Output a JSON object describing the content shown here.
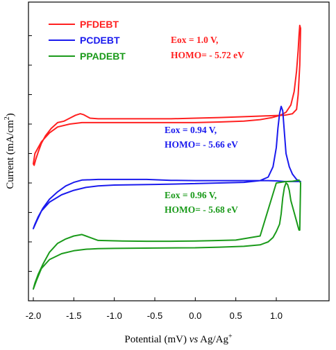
{
  "chart_data": {
    "type": "line",
    "xlabel": "Potential (mV) vs Ag/Ag⁺",
    "xlabel_parts": {
      "pre": "Potential (mV) ",
      "vs": "vs",
      "post": " Ag/Ag",
      "sup": "+"
    },
    "ylabel": "Current (mA/cm²)",
    "ylabel_parts": {
      "pre": "Current (mA/cm",
      "sup": "2",
      "post": ")"
    },
    "xlim": [
      -2.0,
      1.3
    ],
    "ylim": [
      0,
      10
    ],
    "x_ticks": [
      -2.0,
      -1.5,
      -1.0,
      -0.5,
      0.0,
      0.5,
      1.0
    ],
    "x_tick_labels": [
      "-2.0",
      "-1.5",
      "-1.0",
      "-0.5",
      "0.0",
      "0.5",
      "1.0"
    ],
    "y_ticks": [
      0,
      1,
      2,
      3,
      4,
      5,
      6,
      7,
      8,
      9
    ],
    "y_tick_labels_shown": false,
    "grid": false,
    "legend_position": "top-left",
    "series": [
      {
        "name": "PFDEBT",
        "color": "#ff2020",
        "annotation": [
          "Eox = 1.0 V,",
          "HOMO= - 5.72 eV"
        ],
        "x": [
          0.0,
          0.3,
          0.6,
          0.8,
          0.95,
          1.05,
          1.12,
          1.18,
          1.22,
          1.25,
          1.27,
          1.28,
          1.29,
          1.3,
          1.29,
          1.27,
          1.25,
          1.2,
          1.1,
          0.9,
          0.6,
          0.3,
          0.0,
          -0.3,
          -0.6,
          -0.9,
          -1.2,
          -1.3,
          -1.38,
          -1.42,
          -1.48,
          -1.55,
          -1.62,
          -1.7,
          -1.78,
          -1.85,
          -1.9,
          -1.94,
          -1.97,
          -1.99,
          -2.0,
          -1.98,
          -1.9,
          -1.8,
          -1.7,
          -1.55,
          -1.4,
          -1.2,
          -1.0,
          -0.5,
          0.0
        ],
        "y": [
          6.05,
          6.07,
          6.1,
          6.15,
          6.22,
          6.3,
          6.4,
          6.65,
          7.1,
          7.8,
          8.5,
          9.0,
          9.35,
          9.25,
          8.0,
          7.0,
          6.5,
          6.35,
          6.3,
          6.28,
          6.25,
          6.22,
          6.2,
          6.18,
          6.18,
          6.18,
          6.18,
          6.2,
          6.32,
          6.35,
          6.3,
          6.2,
          6.1,
          6.05,
          5.85,
          5.6,
          5.35,
          5.05,
          4.8,
          4.6,
          4.65,
          5.0,
          5.4,
          5.7,
          5.9,
          6.0,
          6.05,
          6.05,
          6.05,
          6.05,
          6.05
        ]
      },
      {
        "name": "PCDEBT",
        "color": "#1a1aee",
        "annotation": [
          "Eox = 0.94 V,",
          "HOMO= - 5.66 eV"
        ],
        "x": [
          0.0,
          0.3,
          0.6,
          0.8,
          0.9,
          0.96,
          1.0,
          1.02,
          1.04,
          1.06,
          1.08,
          1.1,
          1.12,
          1.16,
          1.2,
          1.25,
          1.28,
          1.3,
          1.25,
          1.2,
          1.1,
          1.0,
          0.9,
          0.7,
          0.5,
          0.3,
          0.1,
          0.0,
          -0.3,
          -0.6,
          -0.9,
          -1.2,
          -1.4,
          -1.5,
          -1.6,
          -1.7,
          -1.8,
          -1.88,
          -1.94,
          -1.98,
          -2.0,
          -1.96,
          -1.9,
          -1.8,
          -1.65,
          -1.5,
          -1.35,
          -1.2,
          -1.0,
          -0.5,
          0.0
        ],
        "y": [
          3.98,
          4.0,
          4.02,
          4.08,
          4.2,
          4.55,
          5.2,
          5.85,
          6.35,
          6.6,
          6.45,
          5.7,
          5.0,
          4.55,
          4.3,
          4.12,
          4.07,
          4.05,
          4.05,
          4.05,
          4.05,
          4.07,
          4.08,
          4.08,
          4.08,
          4.08,
          4.08,
          4.08,
          4.09,
          4.12,
          4.12,
          4.12,
          4.1,
          4.02,
          3.9,
          3.7,
          3.45,
          3.15,
          2.85,
          2.6,
          2.45,
          2.7,
          3.05,
          3.35,
          3.6,
          3.75,
          3.85,
          3.9,
          3.93,
          3.95,
          3.98
        ]
      },
      {
        "name": "PPADEBT",
        "color": "#1a9a1a",
        "annotation": [
          "Eox = 0.96 V,",
          "HOMO= - 5.68 eV"
        ],
        "x": [
          0.0,
          0.3,
          0.6,
          0.8,
          0.9,
          0.96,
          1.0,
          1.04,
          1.06,
          1.08,
          1.1,
          1.12,
          1.14,
          1.16,
          1.18,
          1.22,
          1.25,
          1.27,
          1.28,
          1.29,
          1.3,
          1.28,
          1.25,
          1.2,
          1.15,
          1.1,
          1.0,
          0.8,
          0.5,
          0.2,
          0.0,
          -0.3,
          -0.6,
          -0.9,
          -1.2,
          -1.35,
          -1.4,
          -1.5,
          -1.6,
          -1.7,
          -1.8,
          -1.88,
          -1.94,
          -1.98,
          -2.0,
          -1.96,
          -1.9,
          -1.8,
          -1.65,
          -1.5,
          -1.35,
          -1.2,
          -1.0,
          -0.5,
          0.0
        ],
        "y": [
          1.8,
          1.82,
          1.85,
          1.9,
          2.0,
          2.15,
          2.35,
          2.6,
          2.95,
          3.5,
          3.85,
          4.0,
          3.95,
          3.75,
          3.4,
          3.0,
          2.7,
          2.5,
          2.4,
          2.4,
          4.0,
          4.1,
          4.08,
          4.06,
          4.05,
          4.04,
          4.0,
          2.2,
          2.06,
          2.04,
          2.03,
          2.02,
          2.02,
          2.03,
          2.05,
          2.2,
          2.25,
          2.2,
          2.1,
          1.95,
          1.65,
          1.25,
          0.9,
          0.6,
          0.4,
          0.7,
          1.1,
          1.4,
          1.6,
          1.7,
          1.75,
          1.77,
          1.78,
          1.79,
          1.8
        ]
      }
    ]
  }
}
